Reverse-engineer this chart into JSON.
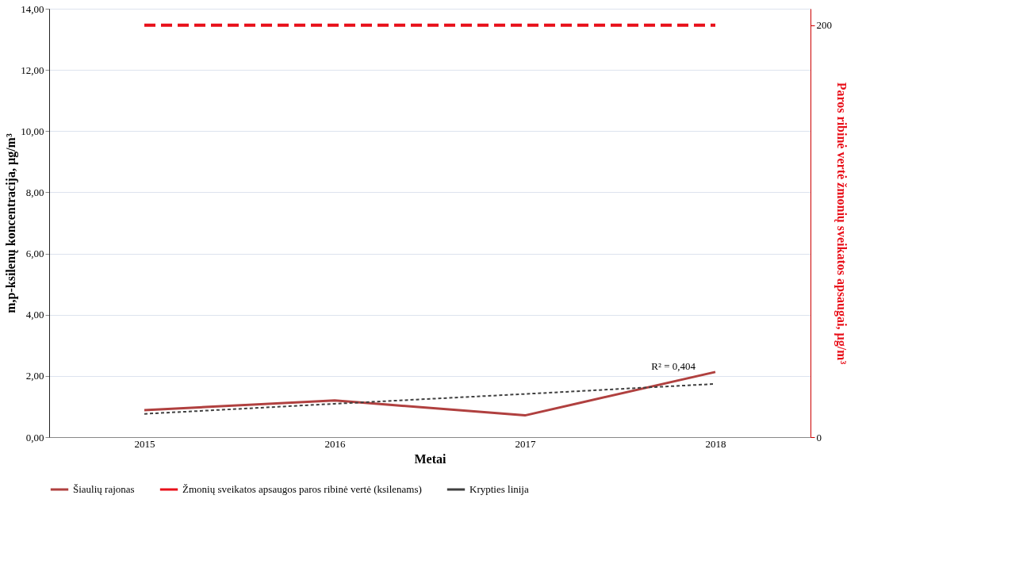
{
  "chart_data": {
    "type": "line",
    "xlabel": "Metai",
    "ylabel": "m,p-ksilenų koncentracija, µg/m³",
    "y2label": "Paros ribinė vertė žmonių sveikatos apsaugai, µg/m³",
    "categories": [
      "2015",
      "2016",
      "2017",
      "2018"
    ],
    "series": [
      {
        "name": "Šiaulių rajonas",
        "color": "#b0403f",
        "values": [
          0.88,
          1.2,
          0.71,
          2.13
        ],
        "line_style": "solid"
      },
      {
        "name": "Žmonių sveikatos apsaugos paros ribinė vertė (ksilenams)",
        "color": "#e8101a",
        "values": [
          200,
          200,
          200,
          200
        ],
        "axis": "y2",
        "line_style": "dashed"
      },
      {
        "name": "Krypties linija",
        "color": "#404040",
        "values": [
          0.76,
          1.09,
          1.41,
          1.74
        ],
        "line_style": "dotted"
      }
    ],
    "annotations": [
      {
        "text": "R² = 0,404",
        "x": "2018",
        "y": 1.74
      }
    ],
    "ylim": [
      0,
      14
    ],
    "yticks": [
      {
        "value": 0,
        "label": "0,00"
      },
      {
        "value": 2,
        "label": "2,00"
      },
      {
        "value": 4,
        "label": "4,00"
      },
      {
        "value": 6,
        "label": "6,00"
      },
      {
        "value": 8,
        "label": "8,00"
      },
      {
        "value": 10,
        "label": "10,00"
      },
      {
        "value": 12,
        "label": "12,00"
      },
      {
        "value": 14,
        "label": "14,00"
      }
    ],
    "y2lim": [
      0,
      208
    ],
    "y2ticks": [
      0,
      200
    ],
    "grid": "y",
    "legend": "bottom",
    "marker": "none"
  }
}
